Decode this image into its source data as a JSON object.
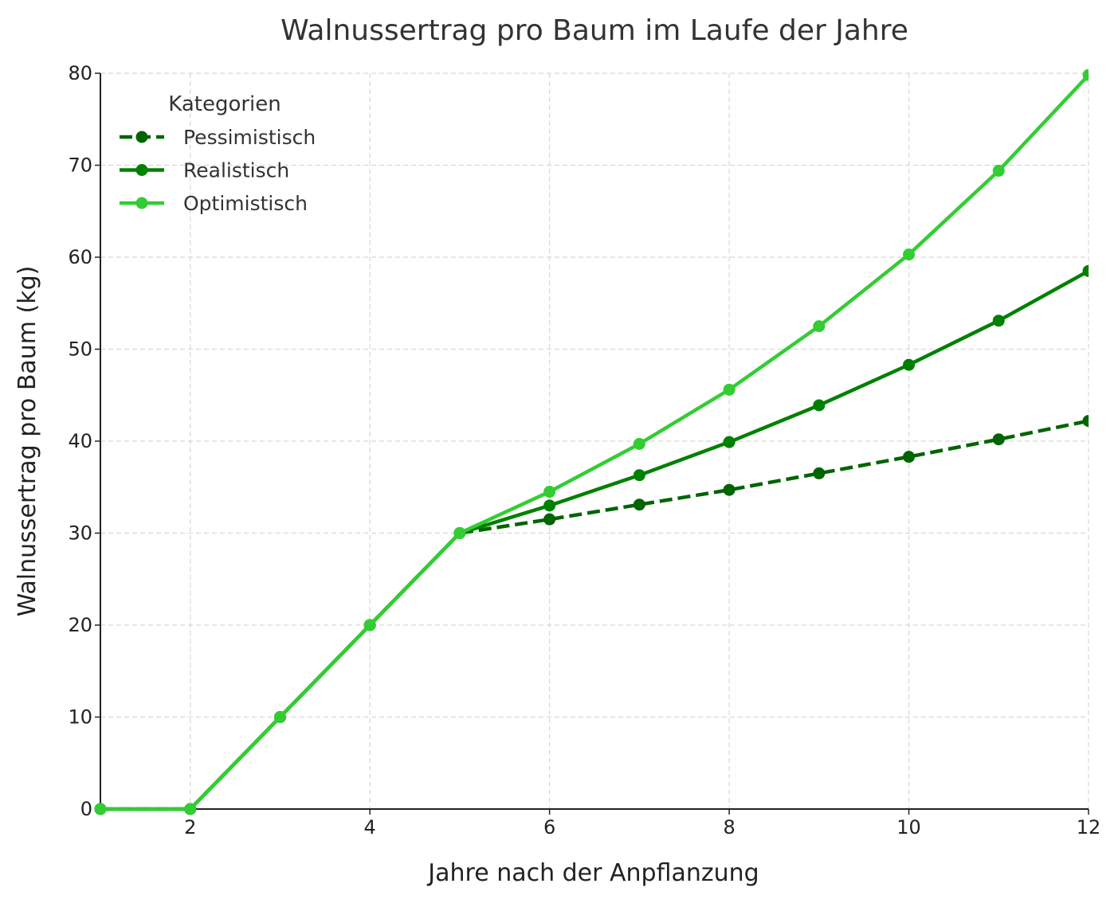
{
  "chart_data": {
    "type": "line",
    "title": "Walnussertrag pro Baum im Laufe der Jahre",
    "xlabel": "Jahre nach der Anpflanzung",
    "ylabel": "Walnussertrag pro Baum (kg)",
    "xlim": [
      1,
      12
    ],
    "ylim": [
      0,
      80
    ],
    "x_ticks": [
      "2",
      "4",
      "6",
      "8",
      "10",
      "12"
    ],
    "y_ticks": [
      "0",
      "10",
      "20",
      "30",
      "40",
      "50",
      "60",
      "70",
      "80"
    ],
    "grid": true,
    "legend": {
      "title": "Kategorien",
      "placement": "top-left"
    },
    "x": [
      1,
      2,
      3,
      4,
      5,
      6,
      7,
      8,
      9,
      10,
      11,
      12
    ],
    "series": [
      {
        "name": "Pessimistisch",
        "color": "#006400",
        "line_style": "dashed",
        "values": [
          0,
          0,
          10,
          20,
          30,
          31.5,
          33.1,
          34.7,
          36.5,
          38.3,
          40.2,
          42.2
        ]
      },
      {
        "name": "Realistisch",
        "color": "#008000",
        "line_style": "solid",
        "values": [
          0,
          0,
          10,
          20,
          30,
          33.0,
          36.3,
          39.9,
          43.9,
          48.3,
          53.1,
          58.5
        ]
      },
      {
        "name": "Optimistisch",
        "color": "#32CD32",
        "line_style": "solid",
        "values": [
          0,
          0,
          10,
          20,
          30,
          34.5,
          39.7,
          45.6,
          52.5,
          60.3,
          69.4,
          79.8
        ]
      }
    ]
  }
}
